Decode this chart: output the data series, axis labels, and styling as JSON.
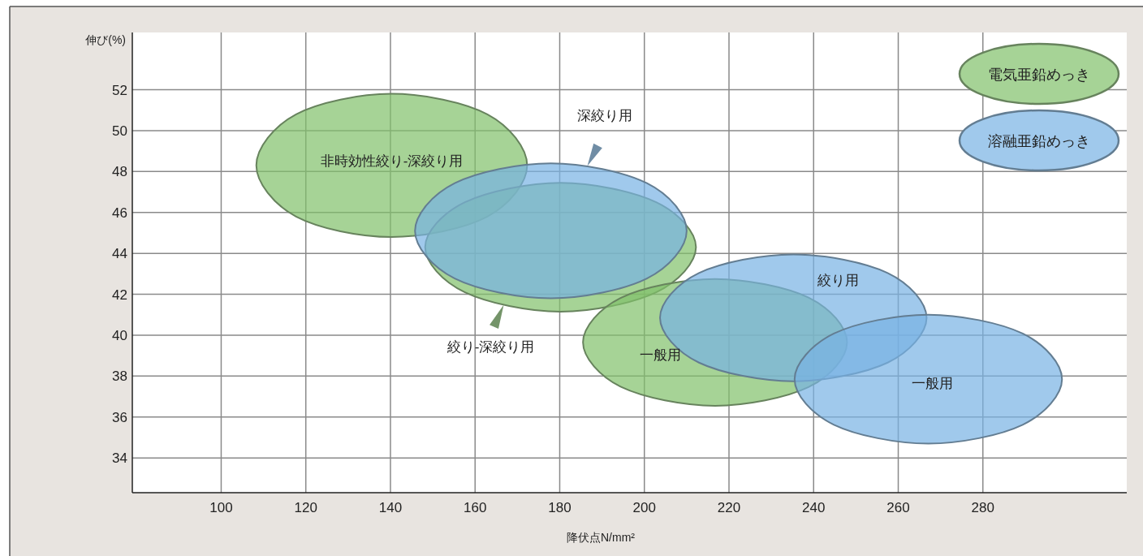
{
  "chart_data": {
    "type": "area",
    "xlabel": "降伏点N/mm²",
    "ylabel": "伸び(%)",
    "xlim": [
      79,
      314
    ],
    "ylim": [
      32.3,
      54.8
    ],
    "xticks": [
      100,
      120,
      140,
      160,
      180,
      200,
      220,
      240,
      260,
      280
    ],
    "yticks": [
      34,
      36,
      38,
      40,
      42,
      44,
      46,
      48,
      50,
      52
    ],
    "grid": true,
    "legend": "top right",
    "series": [
      {
        "name": "電気亜鉛めっき",
        "color": "#a6d396",
        "x": [
          172.3,
          162.9,
          140.3,
          117.7,
          108.3,
          117.7,
          140.3,
          162.9
        ],
        "values": [
          48.3,
          50.8,
          51.8,
          50.8,
          48.3,
          45.8,
          44.8,
          45.8
        ]
      },
      {
        "color": "#a6d396",
        "x": [
          212.2,
          202.8,
          180.2,
          157.6,
          148.2,
          157.6,
          180.2,
          202.8
        ],
        "values": [
          44.3,
          46.5,
          47.45,
          46.5,
          44.3,
          42.1,
          41.15,
          42.1
        ]
      },
      {
        "color": "#a6d396",
        "x": [
          247.9,
          238.8,
          216.7,
          194.6,
          185.5,
          194.6,
          216.7,
          238.8
        ],
        "values": [
          39.65,
          41.84,
          42.75,
          41.84,
          39.65,
          37.46,
          36.55,
          37.46
        ]
      },
      {
        "name": "溶融亜鉛めっき",
        "color": "#a0c9ec",
        "x": [
          210,
          200.6,
          177.9,
          155.2,
          145.8,
          155.2,
          177.9,
          200.6
        ],
        "values": [
          45.1,
          47.43,
          48.4,
          47.43,
          45.1,
          42.77,
          41.8,
          42.77
        ]
      },
      {
        "color": "#a0c9ec",
        "x": [
          266.7,
          257.5,
          235.2,
          212.9,
          203.7,
          212.9,
          235.2,
          257.5
        ],
        "values": [
          40.85,
          43.04,
          43.95,
          43.04,
          40.85,
          38.66,
          37.75,
          38.66
        ]
      },
      {
        "color": "#a0c9ec",
        "x": [
          298.7,
          289.4,
          267.1,
          244.8,
          235.5,
          244.8,
          267.1,
          289.4
        ],
        "values": [
          37.85,
          40.08,
          41,
          40.08,
          37.85,
          35.62,
          34.7,
          35.62
        ]
      }
    ],
    "annotations": [
      "非時効性絞り-深絞り用",
      "深絞り用",
      "絞り-深絞り用",
      "一般用",
      "絞り用",
      "一般用"
    ]
  }
}
